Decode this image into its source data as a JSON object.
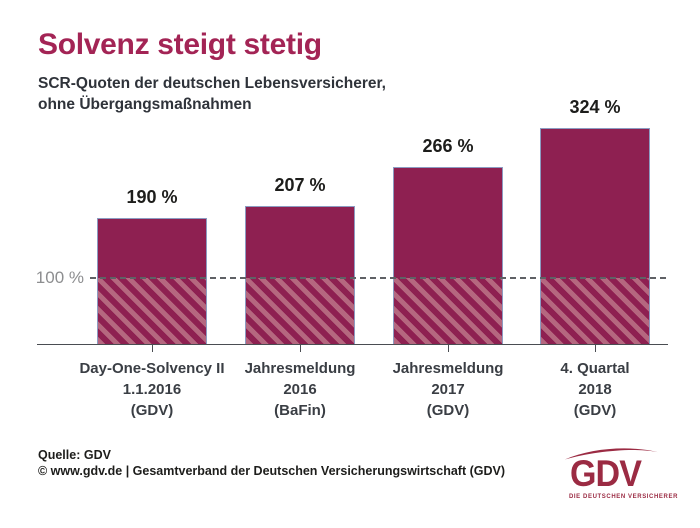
{
  "title": "Solvenz steigt stetig",
  "subtitle": "SCR-Quoten der deutschen Lebensversicherer,\nohne Übergangsmaßnahmen",
  "chart_data": {
    "type": "bar",
    "categories": [
      "Day-One-Solvency II\n1.1.2016\n(GDV)",
      "Jahresmeldung\n2016\n(BaFin)",
      "Jahresmeldung\n2017\n(GDV)",
      "4. Quartal\n2018\n(GDV)"
    ],
    "values": [
      190,
      207,
      266,
      324
    ],
    "value_labels": [
      "190 %",
      "207 %",
      "266 %",
      "324 %"
    ],
    "unit": "%",
    "reference_line": {
      "value": 100,
      "label": "100 %"
    },
    "ylim": [
      0,
      340
    ],
    "grid": false,
    "legend": false,
    "bar_color": "#8E2051",
    "bar_border_color": "#8C9CC2",
    "hatch_light_color": "#B5677F",
    "hatch_note": "area below 100 % reference line shown with diagonal hatching"
  },
  "footer": {
    "source": "Quelle: GDV",
    "copyright": "© www.gdv.de | Gesamtverband der Deutschen Versicherungswirtschaft (GDV)"
  },
  "logo": {
    "text": "GDV",
    "tagline": "DIE DEUTSCHEN VERSICHERER",
    "color": "#9B2B43"
  },
  "colors": {
    "title": "#A32455",
    "subtitle": "#2F333A",
    "axis": "#4A4D52",
    "reference_label": "#8D8E90",
    "value_label": "#1D1D1B"
  }
}
